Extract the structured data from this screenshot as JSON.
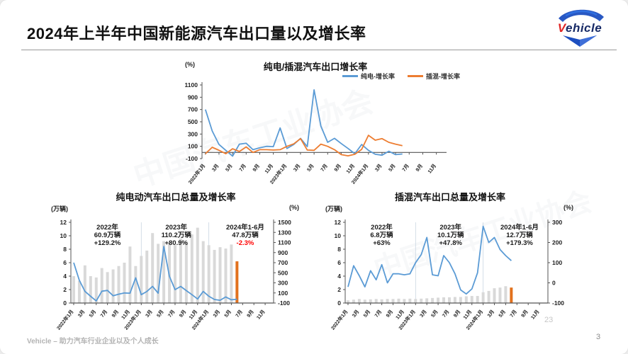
{
  "slide": {
    "title": "2024年上半年中国新能源汽车出口量以及增长率",
    "footer_left": "Vehicle – 助力汽车行业企业以及个人成长",
    "watermark_number": "23",
    "page_number": "3",
    "watermark_text": "中国汽车工业协会",
    "logo": {
      "brand_v": "V",
      "brand_rest": "ehicle"
    }
  },
  "colors": {
    "bev_line": "#5b9bd5",
    "phev_line": "#ed7d31",
    "bar": "#d9d9d9",
    "bar_highlight": "#e2711d",
    "negative": "#ff0000",
    "axis": "#555555",
    "tick_text": "#222222",
    "separator": "#c9d5e2"
  },
  "chart_data": [
    {
      "type": "line",
      "title": "纯电/插混汽车出口增长率",
      "ylabel": "(%)",
      "ylim": [
        -100,
        1100
      ],
      "yticks": [
        1100,
        900,
        700,
        500,
        300,
        100,
        -100
      ],
      "n_slots": 36,
      "xticklabels": [
        "2022年1月",
        "3月",
        "5月",
        "7月",
        "9月",
        "11月",
        "2023年1月",
        "3月",
        "5月",
        "7月",
        "9月",
        "11月",
        "2024年1月",
        "3月",
        "5月",
        "7月",
        "9月",
        "11月"
      ],
      "legend_position": "top-right",
      "series": [
        {
          "name": "纯电-增长率",
          "color_key": "bev_line",
          "values": [
            700,
            350,
            130,
            35,
            -60,
            135,
            150,
            45,
            75,
            100,
            95,
            400,
            65,
            130,
            230,
            95,
            1020,
            430,
            165,
            230,
            145,
            65,
            -20,
            130,
            35,
            -30,
            -45,
            20,
            -35,
            -25
          ]
        },
        {
          "name": "插混-增长率",
          "color_key": "phev_line",
          "values": [
            -20,
            85,
            35,
            -20,
            60,
            15,
            90,
            0,
            45,
            45,
            40,
            45,
            100,
            140,
            225,
            40,
            35,
            135,
            100,
            45,
            -35,
            -55,
            -30,
            50,
            280,
            200,
            225,
            165,
            135,
            110
          ]
        }
      ]
    },
    {
      "type": "bar+line",
      "title": "纯电动汽车出口总量及增长率",
      "left_axis": {
        "label": "(万辆)",
        "lim": [
          0,
          12
        ],
        "ticks": [
          12,
          10,
          8,
          6,
          4,
          2,
          0
        ]
      },
      "right_axis": {
        "label": "(%)",
        "lim": [
          -100,
          1500
        ],
        "ticks": [
          1500,
          1300,
          1100,
          900,
          700,
          500,
          300,
          100,
          -100
        ]
      },
      "n_slots": 36,
      "year_separators": [
        12,
        24
      ],
      "xticklabels": [
        "2022年1月",
        "3月",
        "5月",
        "7月",
        "9月",
        "11月",
        "2023年1月",
        "3月",
        "5月",
        "7月",
        "9月",
        "11月",
        "2024年1月",
        "3月",
        "5月",
        "7月",
        "9月",
        "11月"
      ],
      "bars": {
        "name": "出口总量(万辆)",
        "highlight_last": true,
        "values": [
          4.0,
          3.3,
          5.6,
          4.0,
          3.8,
          5.2,
          4.6,
          5.0,
          5.5,
          6.0,
          8.4,
          5.5,
          7.0,
          7.8,
          10.4,
          8.8,
          9.2,
          9.0,
          8.6,
          9.6,
          9.2,
          10.2,
          11.2,
          9.2,
          8.6,
          7.9,
          8.3,
          8.1,
          8.7,
          6.2
        ]
      },
      "line": {
        "name": "增长率(%)",
        "color_key": "bev_line",
        "values": [
          700,
          350,
          130,
          35,
          -60,
          135,
          150,
          45,
          75,
          100,
          95,
          400,
          65,
          130,
          230,
          95,
          1020,
          430,
          165,
          230,
          145,
          65,
          -20,
          130,
          35,
          -30,
          -45,
          20,
          -35,
          -25
        ]
      },
      "annotations": [
        {
          "lines": [
            {
              "t": "2022年"
            },
            {
              "t": "60.9万辆"
            },
            {
              "t": "+129.2%"
            }
          ]
        },
        {
          "lines": [
            {
              "t": "2023年"
            },
            {
              "t": "110.2万辆"
            },
            {
              "t": "+80.9%"
            }
          ]
        },
        {
          "lines": [
            {
              "t": "2024年1-6月"
            },
            {
              "t": "47.8万辆"
            },
            {
              "t": "-2.3%",
              "color": "#ff0000"
            }
          ]
        }
      ]
    },
    {
      "type": "bar+line",
      "title": "插混汽车出口总量及增长率",
      "left_axis": {
        "label": "(万辆)",
        "lim": [
          0,
          12
        ],
        "ticks": [
          12,
          10,
          8,
          6,
          4,
          2,
          0
        ]
      },
      "right_axis": {
        "label": "(%)",
        "lim": [
          -100,
          300
        ],
        "ticks": [
          300,
          200,
          100,
          0,
          -100
        ]
      },
      "n_slots": 36,
      "year_separators": [
        12,
        24
      ],
      "xticklabels": [
        "2022年1月",
        "3月",
        "5月",
        "7月",
        "9月",
        "11月",
        "2023年1月",
        "3月",
        "5月",
        "7月",
        "9月",
        "11月",
        "2024年1月",
        "3月",
        "5月",
        "7月",
        "9月",
        "11月"
      ],
      "bars": {
        "name": "出口总量(万辆)",
        "highlight_last": true,
        "values": [
          0.4,
          0.5,
          0.6,
          0.5,
          0.55,
          0.6,
          0.55,
          0.6,
          0.6,
          0.65,
          0.6,
          0.65,
          0.6,
          0.65,
          0.7,
          0.75,
          0.8,
          0.85,
          0.85,
          0.9,
          0.9,
          1.0,
          1.05,
          1.05,
          1.6,
          1.8,
          2.2,
          2.3,
          2.5,
          2.3
        ]
      },
      "line": {
        "name": "增长率(%)",
        "color_key": "phev_line_as_line",
        "color_key_actual": "bev_line",
        "values": [
          -20,
          85,
          35,
          -20,
          60,
          15,
          90,
          0,
          45,
          45,
          40,
          45,
          100,
          140,
          225,
          40,
          35,
          135,
          100,
          45,
          -35,
          -55,
          -30,
          50,
          280,
          200,
          225,
          165,
          135,
          110
        ]
      },
      "annotations": [
        {
          "lines": [
            {
              "t": "2022年"
            },
            {
              "t": "6.8万辆"
            },
            {
              "t": "+63%"
            }
          ]
        },
        {
          "lines": [
            {
              "t": "2023年"
            },
            {
              "t": "10.1万辆"
            },
            {
              "t": "+47.8%"
            }
          ]
        },
        {
          "lines": [
            {
              "t": "2024年1-6月"
            },
            {
              "t": "12.7万辆"
            },
            {
              "t": "+179.3%"
            }
          ]
        }
      ]
    }
  ]
}
